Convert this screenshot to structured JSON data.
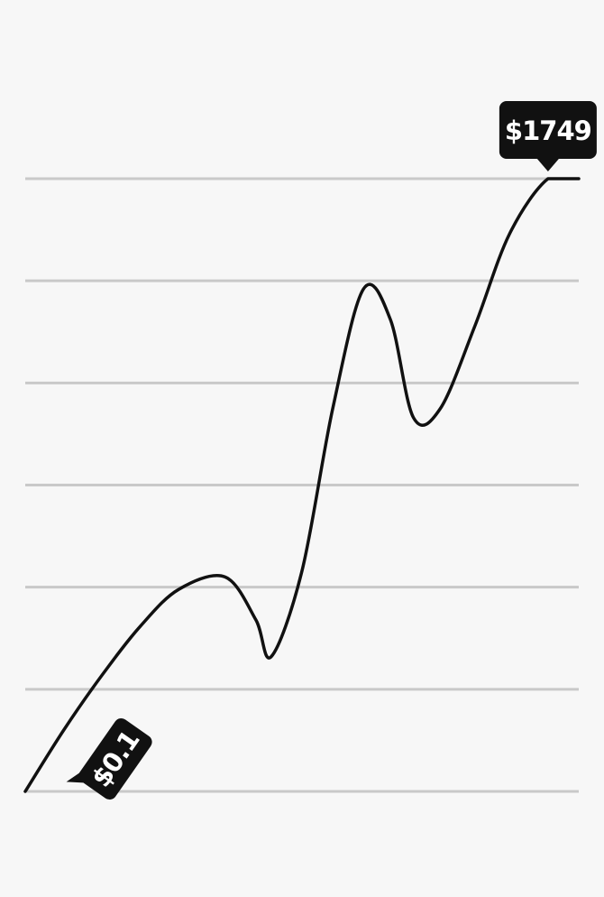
{
  "chart_data": {
    "type": "line",
    "title": "",
    "xlabel": "",
    "ylabel": "",
    "grid": true,
    "gridline_count": 7,
    "colors": {
      "background": "#f7f7f7",
      "grid": "#c9c9c9",
      "line": "#111111",
      "label_bg": "#111111",
      "label_text": "#ffffff"
    },
    "series": [
      {
        "points": [
          [
            0,
            0.0
          ],
          [
            0.5,
            0.2
          ],
          [
            1.0,
            0.38
          ],
          [
            1.5,
            0.54
          ],
          [
            2.0,
            0.66
          ],
          [
            2.6,
            0.7
          ],
          [
            3.0,
            0.56
          ],
          [
            3.2,
            0.44
          ],
          [
            3.6,
            0.72
          ],
          [
            4.0,
            1.25
          ],
          [
            4.4,
            1.64
          ],
          [
            4.75,
            1.54
          ],
          [
            5.05,
            1.22
          ],
          [
            5.4,
            1.25
          ],
          [
            5.85,
            1.52
          ],
          [
            6.3,
            1.82
          ],
          [
            6.8,
            2.0
          ],
          [
            7.2,
            2.0
          ]
        ]
      }
    ],
    "annotations": [
      {
        "text": "$0.1",
        "point": 0
      },
      {
        "text": "$1749",
        "point": 16
      }
    ]
  }
}
